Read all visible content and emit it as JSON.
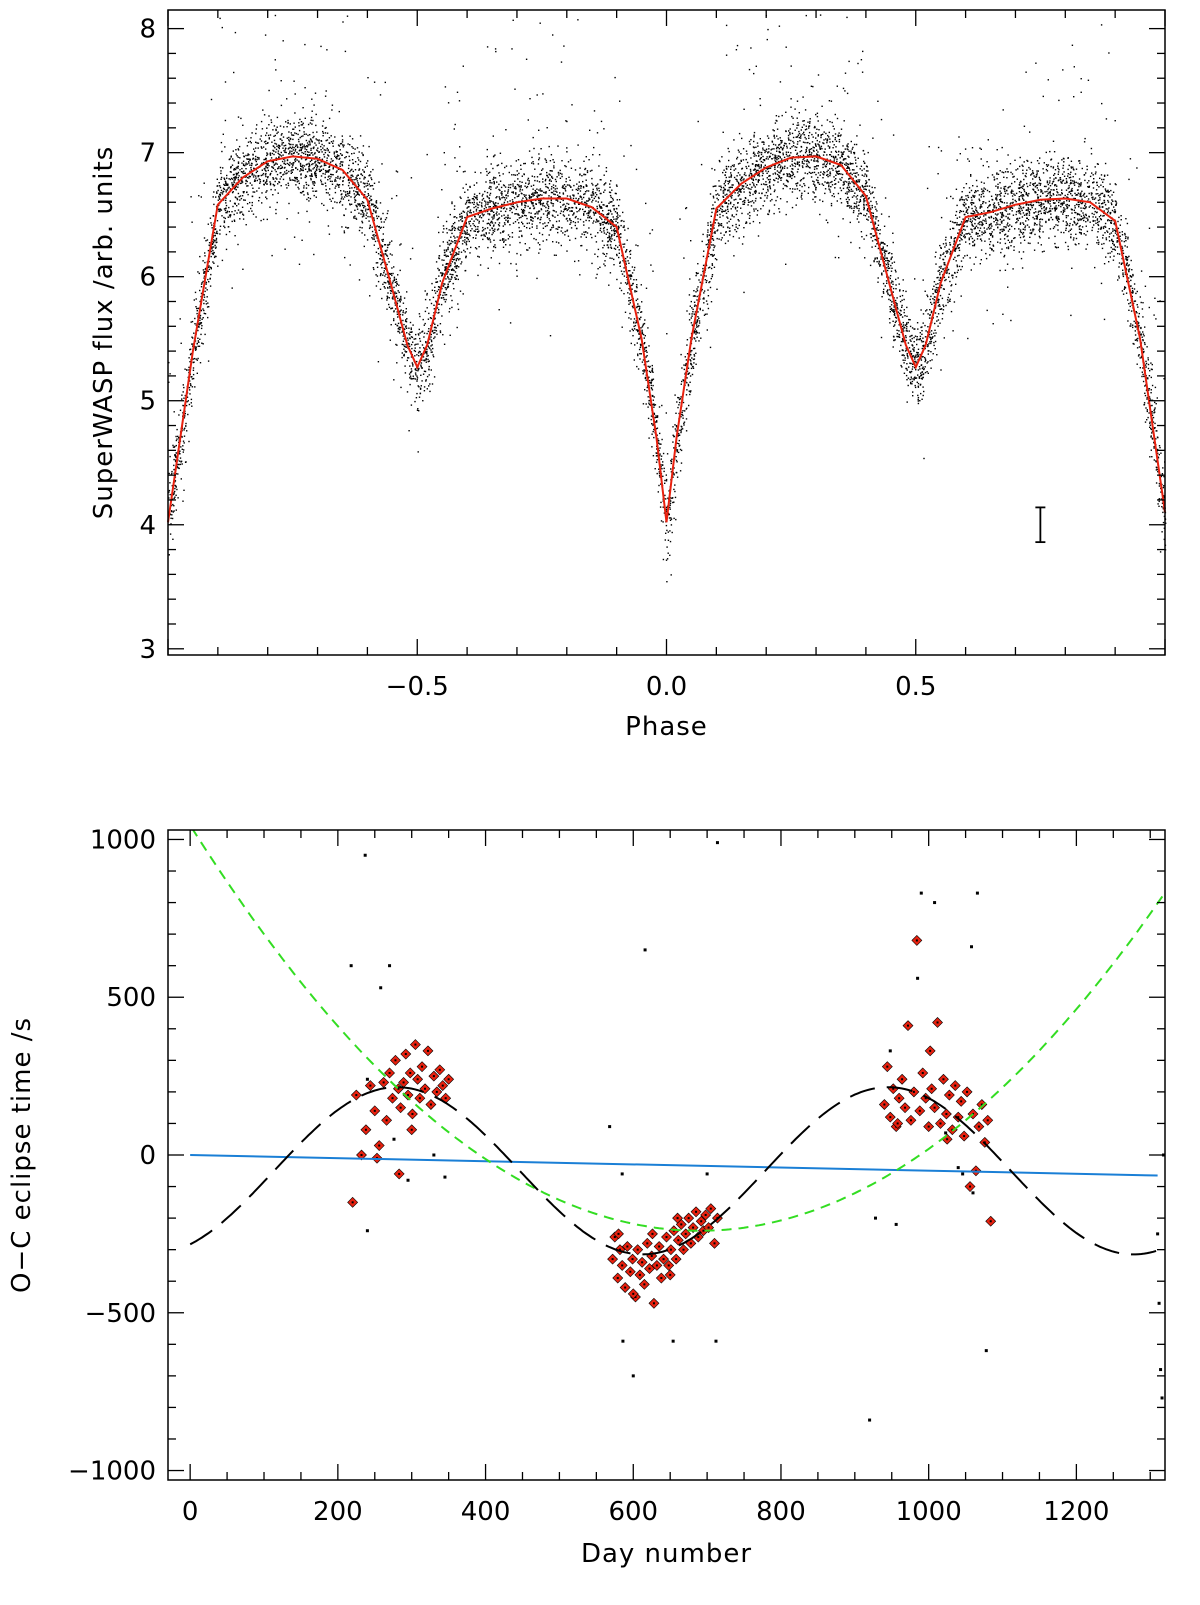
{
  "chart_data": [
    {
      "type": "scatter",
      "title": "",
      "xlabel": "Phase",
      "ylabel": "SuperWASP flux /arb. units",
      "xlim": [
        -1.0,
        1.0
      ],
      "ylim": [
        2.95,
        8.15
      ],
      "xticks": [
        -0.5,
        0.0,
        0.5
      ],
      "xtick_labels": [
        "−0.5",
        "0.0",
        "0.5"
      ],
      "yticks": [
        3,
        4,
        5,
        6,
        7,
        8
      ],
      "ytick_labels": [
        "3",
        "4",
        "5",
        "6",
        "7",
        "8"
      ],
      "grid": false,
      "legend": "none",
      "colors": {
        "points": "#000000",
        "model": "#e8210f"
      },
      "series": [
        {
          "kind": "scatter_cloud",
          "description_points": "dense SuperWASP photometry folded on the orbital period, shown twice (phase -1 to 1)"
        },
        {
          "kind": "line",
          "x": [
            -1.0,
            -0.95,
            -0.9,
            -0.85,
            -0.8,
            -0.75,
            -0.7,
            -0.65,
            -0.6,
            -0.55,
            -0.52,
            -0.5,
            -0.48,
            -0.45,
            -0.4,
            -0.35,
            -0.3,
            -0.25,
            -0.2,
            -0.15,
            -0.1,
            -0.05,
            -0.02,
            0.0,
            0.02,
            0.05,
            0.1,
            0.15,
            0.2,
            0.25,
            0.3,
            0.35,
            0.4,
            0.45,
            0.48,
            0.5,
            0.52,
            0.55,
            0.6,
            0.65,
            0.7,
            0.75,
            0.8,
            0.85,
            0.9,
            0.95,
            1.0
          ],
          "y": [
            4.02,
            5.4,
            6.58,
            6.8,
            6.93,
            6.97,
            6.95,
            6.86,
            6.62,
            5.9,
            5.45,
            5.27,
            5.45,
            5.95,
            6.48,
            6.55,
            6.6,
            6.63,
            6.63,
            6.56,
            6.4,
            5.5,
            4.7,
            4.02,
            4.7,
            5.5,
            6.55,
            6.75,
            6.88,
            6.96,
            6.97,
            6.9,
            6.65,
            5.9,
            5.45,
            5.27,
            5.45,
            5.95,
            6.48,
            6.52,
            6.58,
            6.62,
            6.63,
            6.6,
            6.45,
            5.5,
            4.1
          ]
        }
      ],
      "annotations": [
        {
          "kind": "error_bar",
          "x": 0.75,
          "y": 4.0,
          "half_height": 0.14
        }
      ]
    },
    {
      "type": "scatter",
      "title": "",
      "xlabel": "Day number",
      "ylabel": "O−C eclipse time /s",
      "xlim": [
        -30,
        1320
      ],
      "ylim": [
        -1030,
        1030
      ],
      "xticks": [
        0,
        200,
        400,
        600,
        800,
        1000,
        1200
      ],
      "xtick_labels": [
        "0",
        "200",
        "400",
        "600",
        "800",
        "1000",
        "1200"
      ],
      "yticks": [
        -1000,
        -500,
        0,
        500,
        1000
      ],
      "ytick_labels": [
        "−1000",
        "−500",
        "0",
        "500",
        "1000"
      ],
      "grid": false,
      "legend": "none",
      "colors": {
        "accepted": "#e8210f",
        "rejected": "#000000",
        "linear": "#1a7fd6",
        "quadratic": "#33dd22",
        "sinusoid": "#000000"
      },
      "linear_fit": {
        "x": [
          0,
          1310
        ],
        "y": [
          0,
          -65
        ]
      },
      "quadratic_fit": {
        "vertex_x": 690,
        "vertex_y": -240,
        "a": 0.0027
      },
      "sinusoid_fit": {
        "amplitude": 265,
        "period": 665,
        "phase_day": 280,
        "offset": -50
      },
      "accepted_points": [
        [
          220,
          -150
        ],
        [
          225,
          190
        ],
        [
          232,
          0
        ],
        [
          238,
          80
        ],
        [
          244,
          220
        ],
        [
          250,
          140
        ],
        [
          256,
          30
        ],
        [
          262,
          230
        ],
        [
          266,
          110
        ],
        [
          270,
          260
        ],
        [
          274,
          180
        ],
        [
          278,
          300
        ],
        [
          282,
          210
        ],
        [
          285,
          150
        ],
        [
          289,
          230
        ],
        [
          292,
          320
        ],
        [
          295,
          190
        ],
        [
          298,
          260
        ],
        [
          301,
          130
        ],
        [
          305,
          350
        ],
        [
          308,
          240
        ],
        [
          311,
          180
        ],
        [
          314,
          280
        ],
        [
          318,
          210
        ],
        [
          322,
          330
        ],
        [
          326,
          160
        ],
        [
          330,
          250
        ],
        [
          334,
          200
        ],
        [
          338,
          270
        ],
        [
          342,
          220
        ],
        [
          346,
          180
        ],
        [
          350,
          240
        ],
        [
          253,
          -10
        ],
        [
          283,
          -60
        ],
        [
          300,
          80
        ],
        [
          572,
          -330
        ],
        [
          575,
          -260
        ],
        [
          579,
          -390
        ],
        [
          582,
          -300
        ],
        [
          585,
          -350
        ],
        [
          589,
          -420
        ],
        [
          592,
          -290
        ],
        [
          596,
          -370
        ],
        [
          599,
          -330
        ],
        [
          603,
          -450
        ],
        [
          606,
          -300
        ],
        [
          609,
          -380
        ],
        [
          612,
          -340
        ],
        [
          615,
          -410
        ],
        [
          619,
          -280
        ],
        [
          622,
          -360
        ],
        [
          625,
          -320
        ],
        [
          628,
          -470
        ],
        [
          632,
          -350
        ],
        [
          635,
          -290
        ],
        [
          638,
          -390
        ],
        [
          641,
          -330
        ],
        [
          645,
          -260
        ],
        [
          648,
          -350
        ],
        [
          651,
          -300
        ],
        [
          655,
          -240
        ],
        [
          658,
          -330
        ],
        [
          661,
          -270
        ],
        [
          665,
          -220
        ],
        [
          668,
          -300
        ],
        [
          671,
          -250
        ],
        [
          675,
          -200
        ],
        [
          678,
          -280
        ],
        [
          681,
          -230
        ],
        [
          685,
          -180
        ],
        [
          688,
          -260
        ],
        [
          692,
          -210
        ],
        [
          695,
          -240
        ],
        [
          698,
          -190
        ],
        [
          702,
          -230
        ],
        [
          705,
          -170
        ],
        [
          710,
          -280
        ],
        [
          714,
          -200
        ],
        [
          580,
          -250
        ],
        [
          600,
          -440
        ],
        [
          626,
          -250
        ],
        [
          650,
          -380
        ],
        [
          660,
          -200
        ],
        [
          940,
          160
        ],
        [
          944,
          280
        ],
        [
          948,
          120
        ],
        [
          952,
          210
        ],
        [
          956,
          90
        ],
        [
          960,
          180
        ],
        [
          964,
          240
        ],
        [
          968,
          150
        ],
        [
          972,
          410
        ],
        [
          976,
          110
        ],
        [
          980,
          200
        ],
        [
          984,
          680
        ],
        [
          988,
          140
        ],
        [
          992,
          260
        ],
        [
          996,
          180
        ],
        [
          1000,
          90
        ],
        [
          1004,
          210
        ],
        [
          1008,
          150
        ],
        [
          1012,
          420
        ],
        [
          1016,
          100
        ],
        [
          1020,
          240
        ],
        [
          1024,
          130
        ],
        [
          1028,
          190
        ],
        [
          1032,
          80
        ],
        [
          1036,
          220
        ],
        [
          1040,
          120
        ],
        [
          1044,
          170
        ],
        [
          1048,
          60
        ],
        [
          1052,
          200
        ],
        [
          1056,
          -100
        ],
        [
          1060,
          130
        ],
        [
          1064,
          -50
        ],
        [
          1068,
          90
        ],
        [
          1072,
          160
        ],
        [
          1076,
          40
        ],
        [
          1080,
          110
        ],
        [
          1084,
          -210
        ],
        [
          958,
          100
        ],
        [
          1002,
          330
        ],
        [
          1025,
          50
        ]
      ],
      "rejected_points": [
        [
          218,
          600
        ],
        [
          237,
          950
        ],
        [
          258,
          530
        ],
        [
          270,
          600
        ],
        [
          240,
          -240
        ],
        [
          276,
          50
        ],
        [
          295,
          -80
        ],
        [
          330,
          0
        ],
        [
          345,
          -70
        ],
        [
          240,
          240
        ],
        [
          568,
          90
        ],
        [
          585,
          -60
        ],
        [
          586,
          -590
        ],
        [
          600,
          -700
        ],
        [
          616,
          650
        ],
        [
          654,
          -590
        ],
        [
          700,
          -60
        ],
        [
          714,
          990
        ],
        [
          712,
          -590
        ],
        [
          920,
          -840
        ],
        [
          928,
          -200
        ],
        [
          948,
          330
        ],
        [
          956,
          -220
        ],
        [
          985,
          560
        ],
        [
          990,
          830
        ],
        [
          1008,
          800
        ],
        [
          1023,
          70
        ],
        [
          1058,
          660
        ],
        [
          1066,
          830
        ],
        [
          1078,
          -620
        ],
        [
          1040,
          -40
        ],
        [
          1046,
          -60
        ],
        [
          1060,
          -120
        ],
        [
          1310,
          -250
        ],
        [
          1312,
          -470
        ],
        [
          1314,
          -680
        ],
        [
          1316,
          -770
        ],
        [
          1318,
          0
        ]
      ]
    }
  ]
}
